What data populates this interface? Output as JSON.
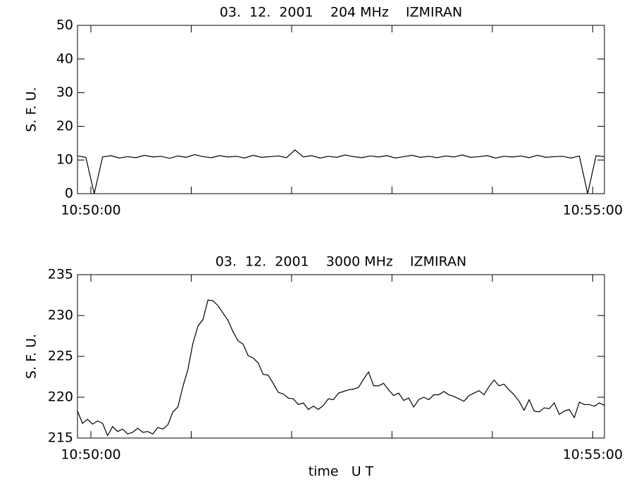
{
  "chart_data": [
    {
      "type": "line",
      "title": "03.  12.  2001    204 MHz    IZMIRAN",
      "ylabel": "S. F. U.",
      "x": [
        "10:49:52",
        "10:49:57",
        "10:50:02",
        "10:50:07",
        "10:50:12",
        "10:50:17",
        "10:50:22",
        "10:50:27",
        "10:50:32",
        "10:50:37",
        "10:50:42",
        "10:50:47",
        "10:50:52",
        "10:50:57",
        "10:51:02",
        "10:51:07",
        "10:51:12",
        "10:51:17",
        "10:51:22",
        "10:51:27",
        "10:51:32",
        "10:51:37",
        "10:51:42",
        "10:51:47",
        "10:51:52",
        "10:51:57",
        "10:52:02",
        "10:52:07",
        "10:52:12",
        "10:52:17",
        "10:52:22",
        "10:52:27",
        "10:52:32",
        "10:52:37",
        "10:52:42",
        "10:52:47",
        "10:52:52",
        "10:52:57",
        "10:53:02",
        "10:53:07",
        "10:53:12",
        "10:53:17",
        "10:53:22",
        "10:53:27",
        "10:53:32",
        "10:53:37",
        "10:53:42",
        "10:53:47",
        "10:53:52",
        "10:53:57",
        "10:54:02",
        "10:54:07",
        "10:54:12",
        "10:54:17",
        "10:54:22",
        "10:54:27",
        "10:54:32",
        "10:54:37",
        "10:54:42",
        "10:54:47",
        "10:54:52",
        "10:54:57",
        "10:55:02",
        "10:55:07"
      ],
      "values": [
        11.2,
        10.8,
        0,
        10.9,
        11.3,
        10.6,
        11.0,
        10.7,
        11.4,
        10.9,
        11.1,
        10.5,
        11.2,
        10.8,
        11.6,
        11.0,
        10.7,
        11.3,
        10.9,
        11.1,
        10.6,
        11.4,
        10.8,
        11.0,
        11.2,
        10.7,
        13.0,
        10.9,
        11.3,
        10.6,
        11.1,
        10.8,
        11.5,
        11.0,
        10.7,
        11.2,
        10.9,
        11.3,
        10.6,
        11.0,
        11.4,
        10.8,
        11.1,
        10.7,
        11.2,
        10.9,
        11.5,
        10.8,
        11.0,
        11.3,
        10.6,
        11.1,
        10.9,
        11.2,
        10.7,
        11.4,
        10.8,
        11.0,
        11.1,
        10.6,
        11.2,
        0,
        11.3,
        11.0
      ],
      "color": "#000000",
      "xlim": [
        "10:49:52",
        "10:55:07"
      ],
      "xticks": [
        "10:50:00",
        "10:55:00"
      ],
      "xminorticks": [
        "10:51:00",
        "10:52:00",
        "10:53:00",
        "10:54:00"
      ],
      "ylim": [
        0,
        50
      ],
      "yticks": [
        0,
        10,
        20,
        30,
        40,
        50
      ]
    },
    {
      "type": "line",
      "title": "03.  12.  2001    3000 MHz    IZMIRAN",
      "ylabel": "S. F. U.",
      "xlabel": "time   U T",
      "x": [
        "10:49:52",
        "10:49:55",
        "10:49:58",
        "10:50:01",
        "10:50:04",
        "10:50:07",
        "10:50:10",
        "10:50:13",
        "10:50:16",
        "10:50:19",
        "10:50:22",
        "10:50:25",
        "10:50:28",
        "10:50:31",
        "10:50:34",
        "10:50:37",
        "10:50:40",
        "10:50:43",
        "10:50:46",
        "10:50:49",
        "10:50:52",
        "10:50:55",
        "10:50:58",
        "10:51:01",
        "10:51:04",
        "10:51:07",
        "10:51:10",
        "10:51:13",
        "10:51:16",
        "10:51:19",
        "10:51:22",
        "10:51:25",
        "10:51:28",
        "10:51:31",
        "10:51:34",
        "10:51:37",
        "10:51:40",
        "10:51:43",
        "10:51:46",
        "10:51:49",
        "10:51:52",
        "10:51:55",
        "10:51:58",
        "10:52:01",
        "10:52:04",
        "10:52:07",
        "10:52:10",
        "10:52:13",
        "10:52:16",
        "10:52:19",
        "10:52:22",
        "10:52:25",
        "10:52:28",
        "10:52:31",
        "10:52:34",
        "10:52:37",
        "10:52:40",
        "10:52:43",
        "10:52:46",
        "10:52:49",
        "10:52:52",
        "10:52:55",
        "10:52:58",
        "10:53:01",
        "10:53:04",
        "10:53:07",
        "10:53:10",
        "10:53:13",
        "10:53:16",
        "10:53:19",
        "10:53:22",
        "10:53:25",
        "10:53:28",
        "10:53:31",
        "10:53:34",
        "10:53:37",
        "10:53:40",
        "10:53:43",
        "10:53:46",
        "10:53:49",
        "10:53:52",
        "10:53:55",
        "10:53:58",
        "10:54:01",
        "10:54:04",
        "10:54:07",
        "10:54:10",
        "10:54:13",
        "10:54:16",
        "10:54:19",
        "10:54:22",
        "10:54:25",
        "10:54:28",
        "10:54:31",
        "10:54:34",
        "10:54:37",
        "10:54:40",
        "10:54:43",
        "10:54:46",
        "10:54:49",
        "10:54:52",
        "10:54:55",
        "10:54:58",
        "10:55:01",
        "10:55:04",
        "10:55:07"
      ],
      "values": [
        218.3,
        216.8,
        217.3,
        216.7,
        217.1,
        216.8,
        215.3,
        216.4,
        215.8,
        216.1,
        215.5,
        215.7,
        216.2,
        215.7,
        215.8,
        215.5,
        216.3,
        216.1,
        216.6,
        218.2,
        218.8,
        221.3,
        223.4,
        226.6,
        228.7,
        229.5,
        231.9,
        231.8,
        231.2,
        230.3,
        229.4,
        228.0,
        226.9,
        226.5,
        225.1,
        224.8,
        224.2,
        222.8,
        222.7,
        221.7,
        220.6,
        220.4,
        219.9,
        219.8,
        219.1,
        219.3,
        218.5,
        218.9,
        218.5,
        219.0,
        219.8,
        219.7,
        220.5,
        220.7,
        220.9,
        221.0,
        221.2,
        222.2,
        223.1,
        221.4,
        221.4,
        221.7,
        220.9,
        220.2,
        220.5,
        219.6,
        219.9,
        218.8,
        219.7,
        220.0,
        219.7,
        220.3,
        220.3,
        220.7,
        220.3,
        220.1,
        219.8,
        219.5,
        220.2,
        220.5,
        220.8,
        220.3,
        221.3,
        222.1,
        221.4,
        221.6,
        220.9,
        220.3,
        219.5,
        218.4,
        219.7,
        218.3,
        218.2,
        218.7,
        218.6,
        219.3,
        217.9,
        218.3,
        218.5,
        217.5,
        219.4,
        219.1,
        219.1,
        218.9,
        219.3,
        219.0
      ],
      "color": "#000000",
      "xlim": [
        "10:49:52",
        "10:55:07"
      ],
      "xticks": [
        "10:50:00",
        "10:55:00"
      ],
      "xminorticks": [
        "10:51:00",
        "10:52:00",
        "10:53:00",
        "10:54:00"
      ],
      "ylim": [
        215,
        235
      ],
      "yticks": [
        215,
        220,
        225,
        230,
        235
      ]
    }
  ]
}
